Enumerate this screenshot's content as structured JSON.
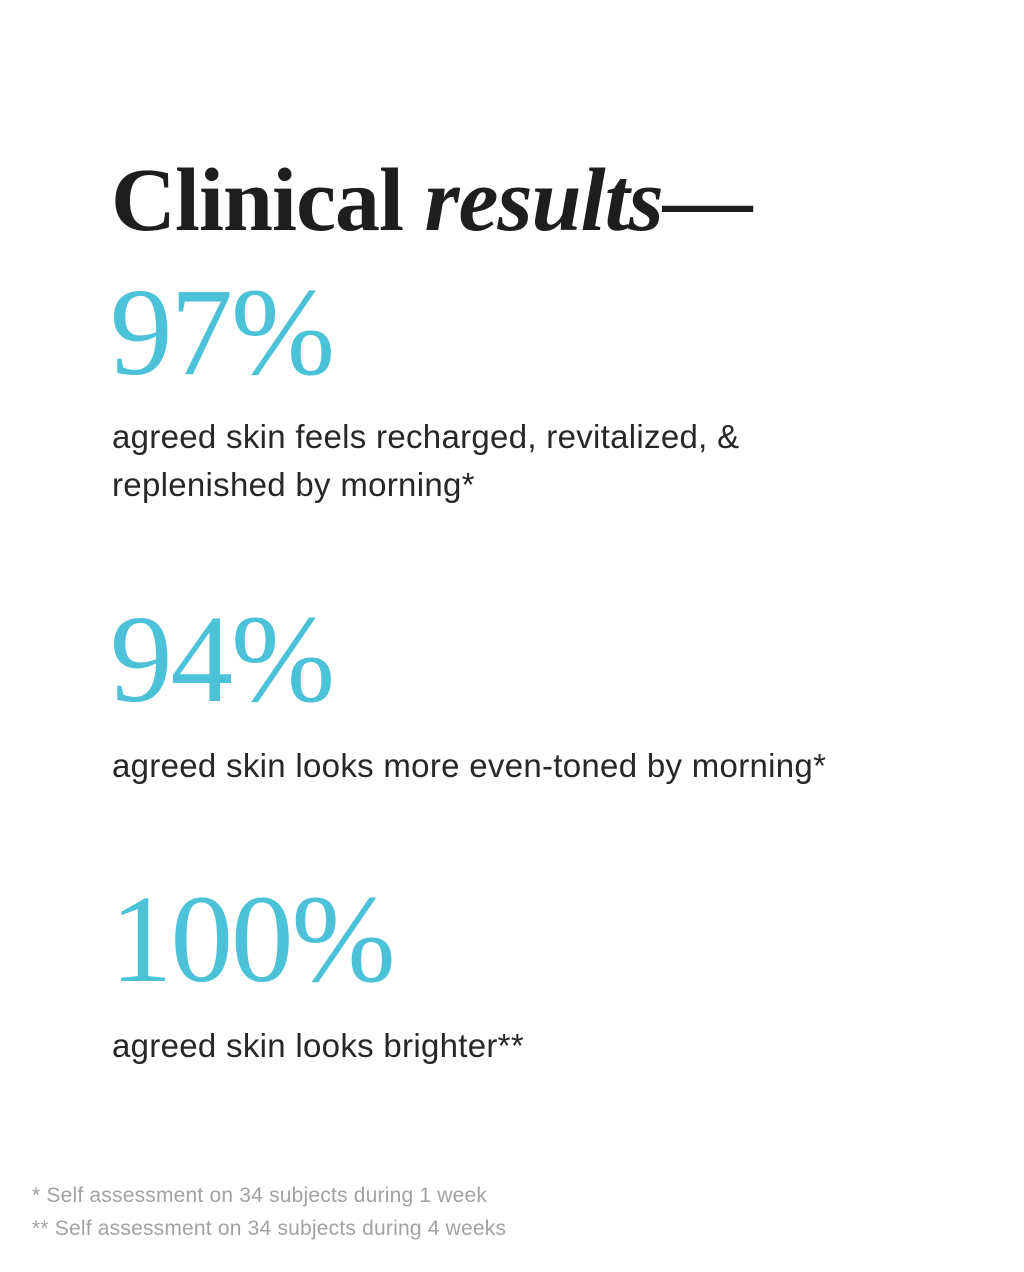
{
  "header": {
    "title_regular": "Clinical ",
    "title_italic": "results",
    "title_dash": "—"
  },
  "stats": [
    {
      "value": "97%",
      "description": "agreed skin feels recharged, revitalized, &\nreplenished by morning*"
    },
    {
      "value": "94%",
      "description": "agreed skin looks more even-toned by morning*"
    },
    {
      "value": "100%",
      "description": "agreed skin looks brighter**"
    }
  ],
  "footnotes": [
    "* Self assessment on 34 subjects during 1 week",
    "** Self assessment on 34 subjects during 4 weeks"
  ],
  "colors": {
    "background": "#ffffff",
    "accent_cyan": "#4bc2d8",
    "heading_text": "#1e1e1e",
    "body_text": "#272727",
    "footnote_text": "#a2a2a2"
  }
}
